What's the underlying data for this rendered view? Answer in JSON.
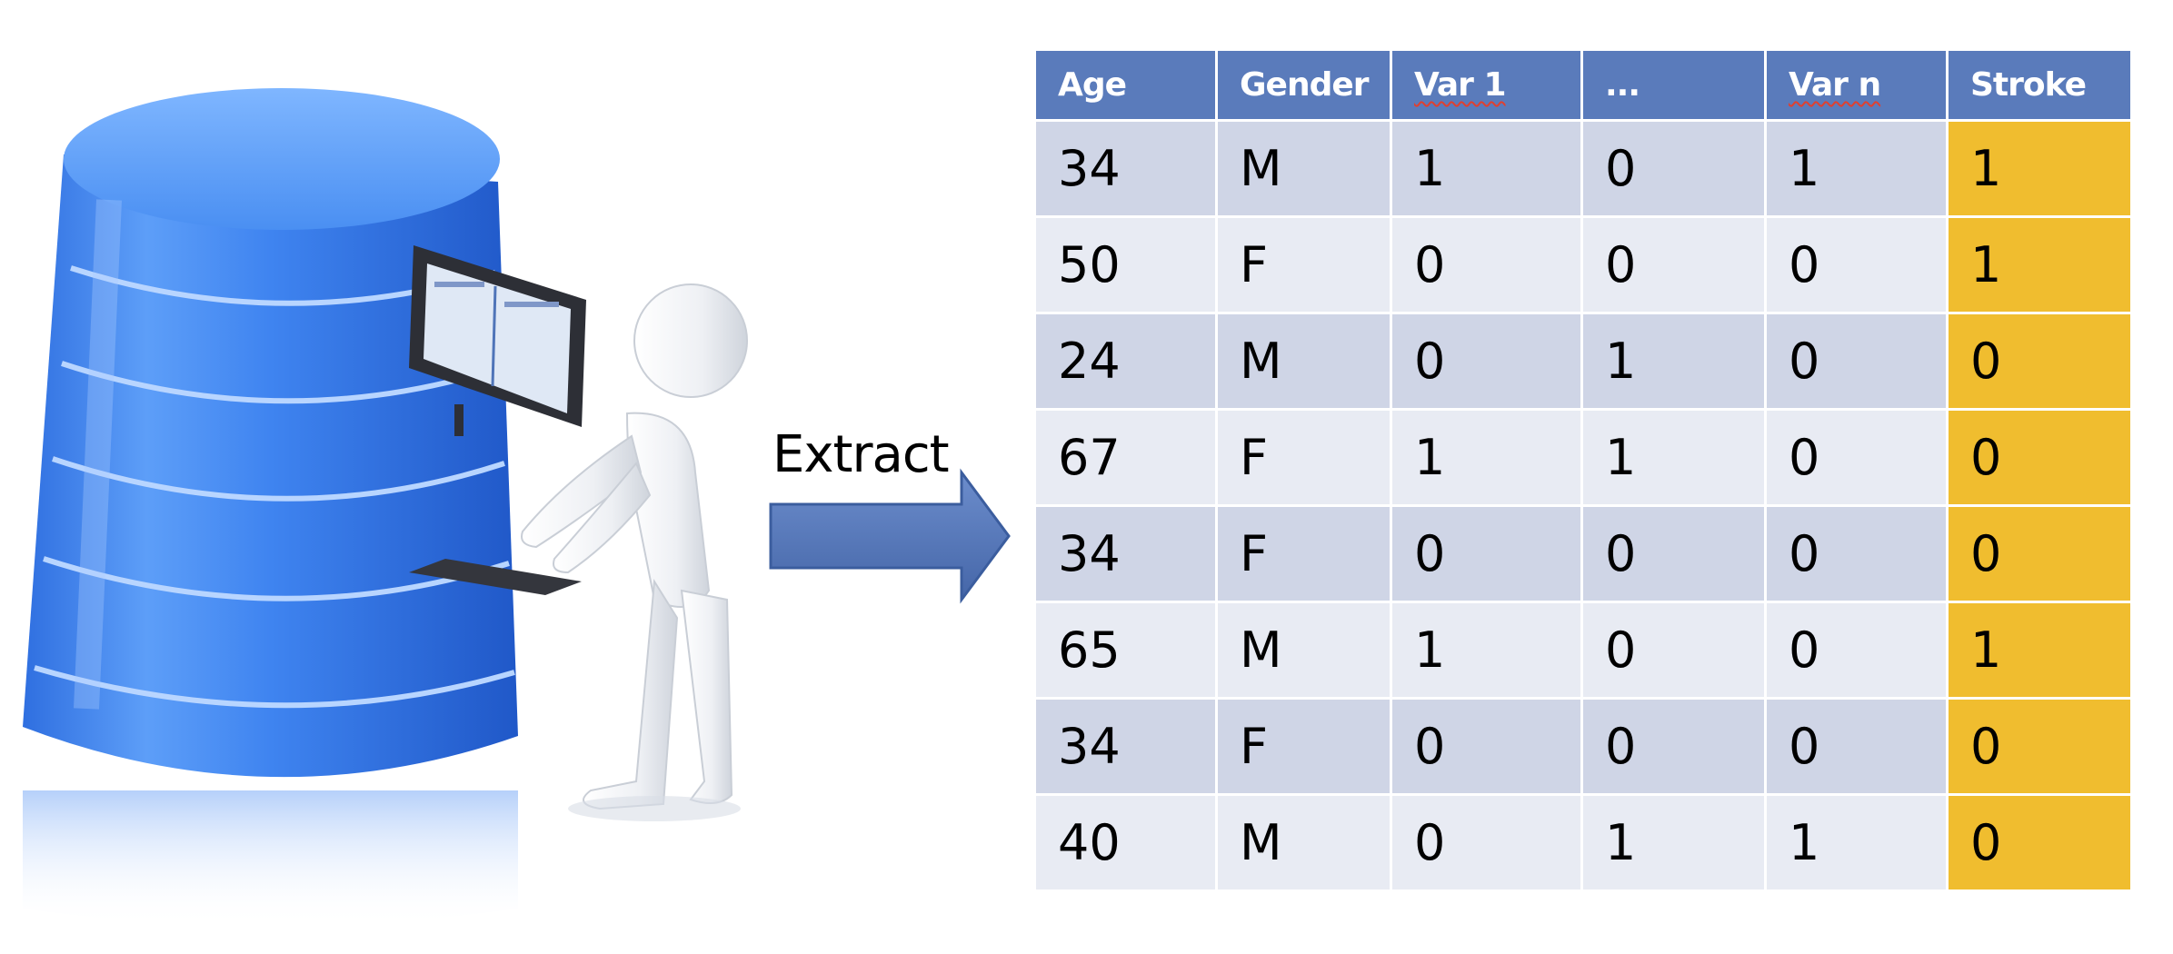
{
  "arrow": {
    "label": "Extract"
  },
  "table": {
    "headers": [
      "Age",
      "Gender",
      "Var 1",
      "...",
      "Var n",
      "Stroke"
    ],
    "rows": [
      [
        "34",
        "M",
        "1",
        "0",
        "1",
        "1"
      ],
      [
        "50",
        "F",
        "0",
        "0",
        "0",
        "1"
      ],
      [
        "24",
        "M",
        "0",
        "1",
        "0",
        "0"
      ],
      [
        "67",
        "F",
        "1",
        "1",
        "0",
        "0"
      ],
      [
        "34",
        "F",
        "0",
        "0",
        "0",
        "0"
      ],
      [
        "65",
        "M",
        "1",
        "0",
        "0",
        "1"
      ],
      [
        "34",
        "F",
        "0",
        "0",
        "0",
        "0"
      ],
      [
        "40",
        "M",
        "0",
        "1",
        "1",
        "0"
      ]
    ]
  },
  "colors": {
    "header_bg": "#5a7bbb",
    "row_dark": "#cfd5e6",
    "row_light": "#e8ebf3",
    "target_column": "#f0bd2f",
    "arrow": "#5677b5",
    "database": "#3b82ee"
  }
}
